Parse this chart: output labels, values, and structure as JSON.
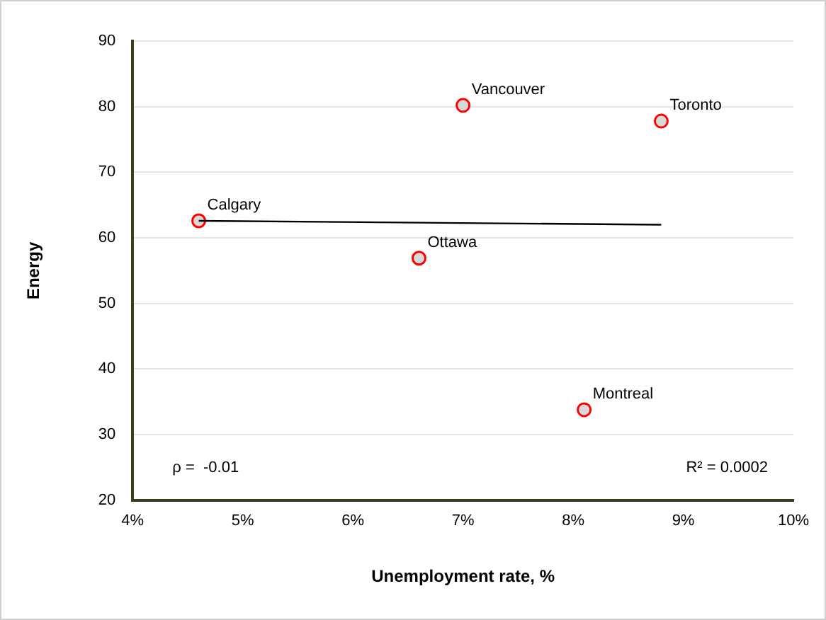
{
  "chart_data": {
    "type": "scatter",
    "xlabel": "Unemployment rate, %",
    "ylabel": "Energy",
    "xlim": [
      4,
      10
    ],
    "ylim": [
      20,
      90
    ],
    "xticks": [
      {
        "value": 4,
        "label": "4%"
      },
      {
        "value": 5,
        "label": "5%"
      },
      {
        "value": 6,
        "label": "6%"
      },
      {
        "value": 7,
        "label": "7%"
      },
      {
        "value": 8,
        "label": "8%"
      },
      {
        "value": 9,
        "label": "9%"
      },
      {
        "value": 10,
        "label": "10%"
      }
    ],
    "yticks": [
      20,
      30,
      40,
      50,
      60,
      70,
      80,
      90
    ],
    "grid": "y",
    "legend": false,
    "marker": "circle",
    "series": [
      {
        "type": "scatter",
        "color": "#ff0000",
        "x": [
          4.6,
          7.0,
          8.8,
          6.6,
          8.1
        ],
        "values": [
          62.6,
          80.2,
          77.8,
          56.9,
          33.8
        ]
      },
      {
        "type": "line",
        "color": "#000000",
        "x": [
          4.6,
          8.8
        ],
        "values": [
          62.6,
          62.0
        ],
        "marker": "none",
        "line_style": "solid"
      }
    ],
    "annotations": [
      {
        "text": "Calgary",
        "x": 4.6,
        "y": 62.6
      },
      {
        "text": "Vancouver",
        "x": 7.0,
        "y": 80.2
      },
      {
        "text": "Toronto",
        "x": 8.8,
        "y": 77.8
      },
      {
        "text": "Ottawa",
        "x": 6.6,
        "y": 56.9
      },
      {
        "text": "Montreal",
        "x": 8.1,
        "y": 33.8
      },
      "ρ =  -0.01",
      "R² = 0.0002"
    ]
  }
}
